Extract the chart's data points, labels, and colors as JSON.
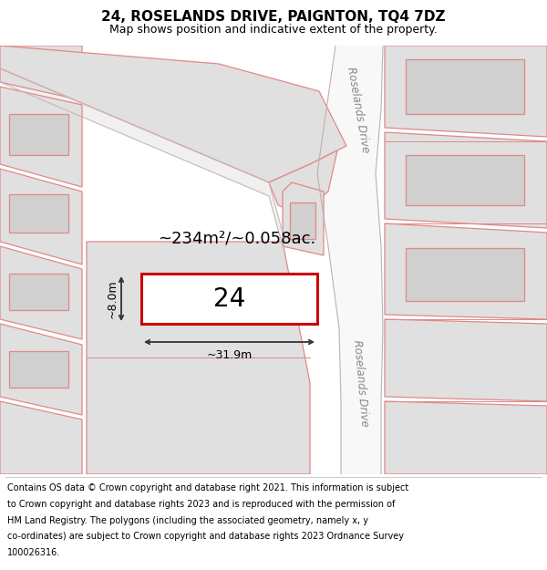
{
  "title_line1": "24, ROSELANDS DRIVE, PAIGNTON, TQ4 7DZ",
  "title_line2": "Map shows position and indicative extent of the property.",
  "area_label": "~234m²/~0.058ac.",
  "plot_number": "24",
  "dim_width": "~31.9m",
  "dim_height": "~8.0m",
  "map_bg": "#f2f2f2",
  "plot_fill": "#ffffff",
  "plot_edge": "#cc0000",
  "neighbor_fill": "#e0e0e0",
  "neighbor_edge": "#e08888",
  "road_fill": "#f8f8f8",
  "road_edge": "#c8b8b8",
  "road_label": "Roselands Drive",
  "title_fontsize": 11,
  "subtitle_fontsize": 9,
  "footer_fontsize": 7.0,
  "area_fontsize": 13,
  "dim_fontsize": 9,
  "plot_num_fontsize": 20,
  "road_label_fontsize": 8.5,
  "footer_lines": [
    "Contains OS data © Crown copyright and database right 2021. This information is subject",
    "to Crown copyright and database rights 2023 and is reproduced with the permission of",
    "HM Land Registry. The polygons (including the associated geometry, namely x, y",
    "co-ordinates) are subject to Crown copyright and database rights 2023 Ordnance Survey",
    "100026316."
  ]
}
